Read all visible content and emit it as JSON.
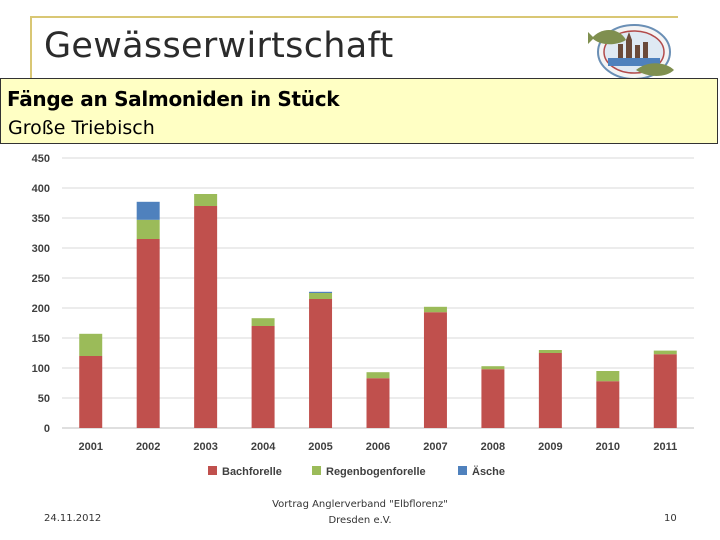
{
  "slide": {
    "title": "Gewässerwirtschaft",
    "heading": "Fänge an Salmoniden in Stück",
    "subheading": "Große Triebisch",
    "footer_date": "24.11.2012",
    "footer_line1": "Vortrag Anglerverband \"Elbflorenz\"",
    "footer_line2": "Dresden e.V.",
    "page_number": "10",
    "logo_icon": "fish-club-logo-icon"
  },
  "chart_data": {
    "type": "bar",
    "stacked": true,
    "categories": [
      "2001",
      "2002",
      "2003",
      "2004",
      "2005",
      "2006",
      "2007",
      "2008",
      "2009",
      "2010",
      "2011"
    ],
    "series": [
      {
        "name": "Bachforelle",
        "color": "#c0504d",
        "values": [
          120,
          315,
          370,
          170,
          215,
          83,
          193,
          98,
          125,
          78,
          123
        ]
      },
      {
        "name": "Regenbogenforelle",
        "color": "#9bbb59",
        "values": [
          37,
          32,
          20,
          13,
          10,
          10,
          9,
          5,
          5,
          17,
          6
        ]
      },
      {
        "name": "Äsche",
        "color": "#4f81bd",
        "values": [
          0,
          30,
          0,
          0,
          2,
          0,
          0,
          0,
          0,
          0,
          0
        ]
      }
    ],
    "yticks": [
      "0",
      "50",
      "100",
      "150",
      "200",
      "250",
      "300",
      "350",
      "400",
      "450"
    ],
    "ylim": [
      0,
      450
    ],
    "grid": true,
    "legend_position": "bottom"
  }
}
